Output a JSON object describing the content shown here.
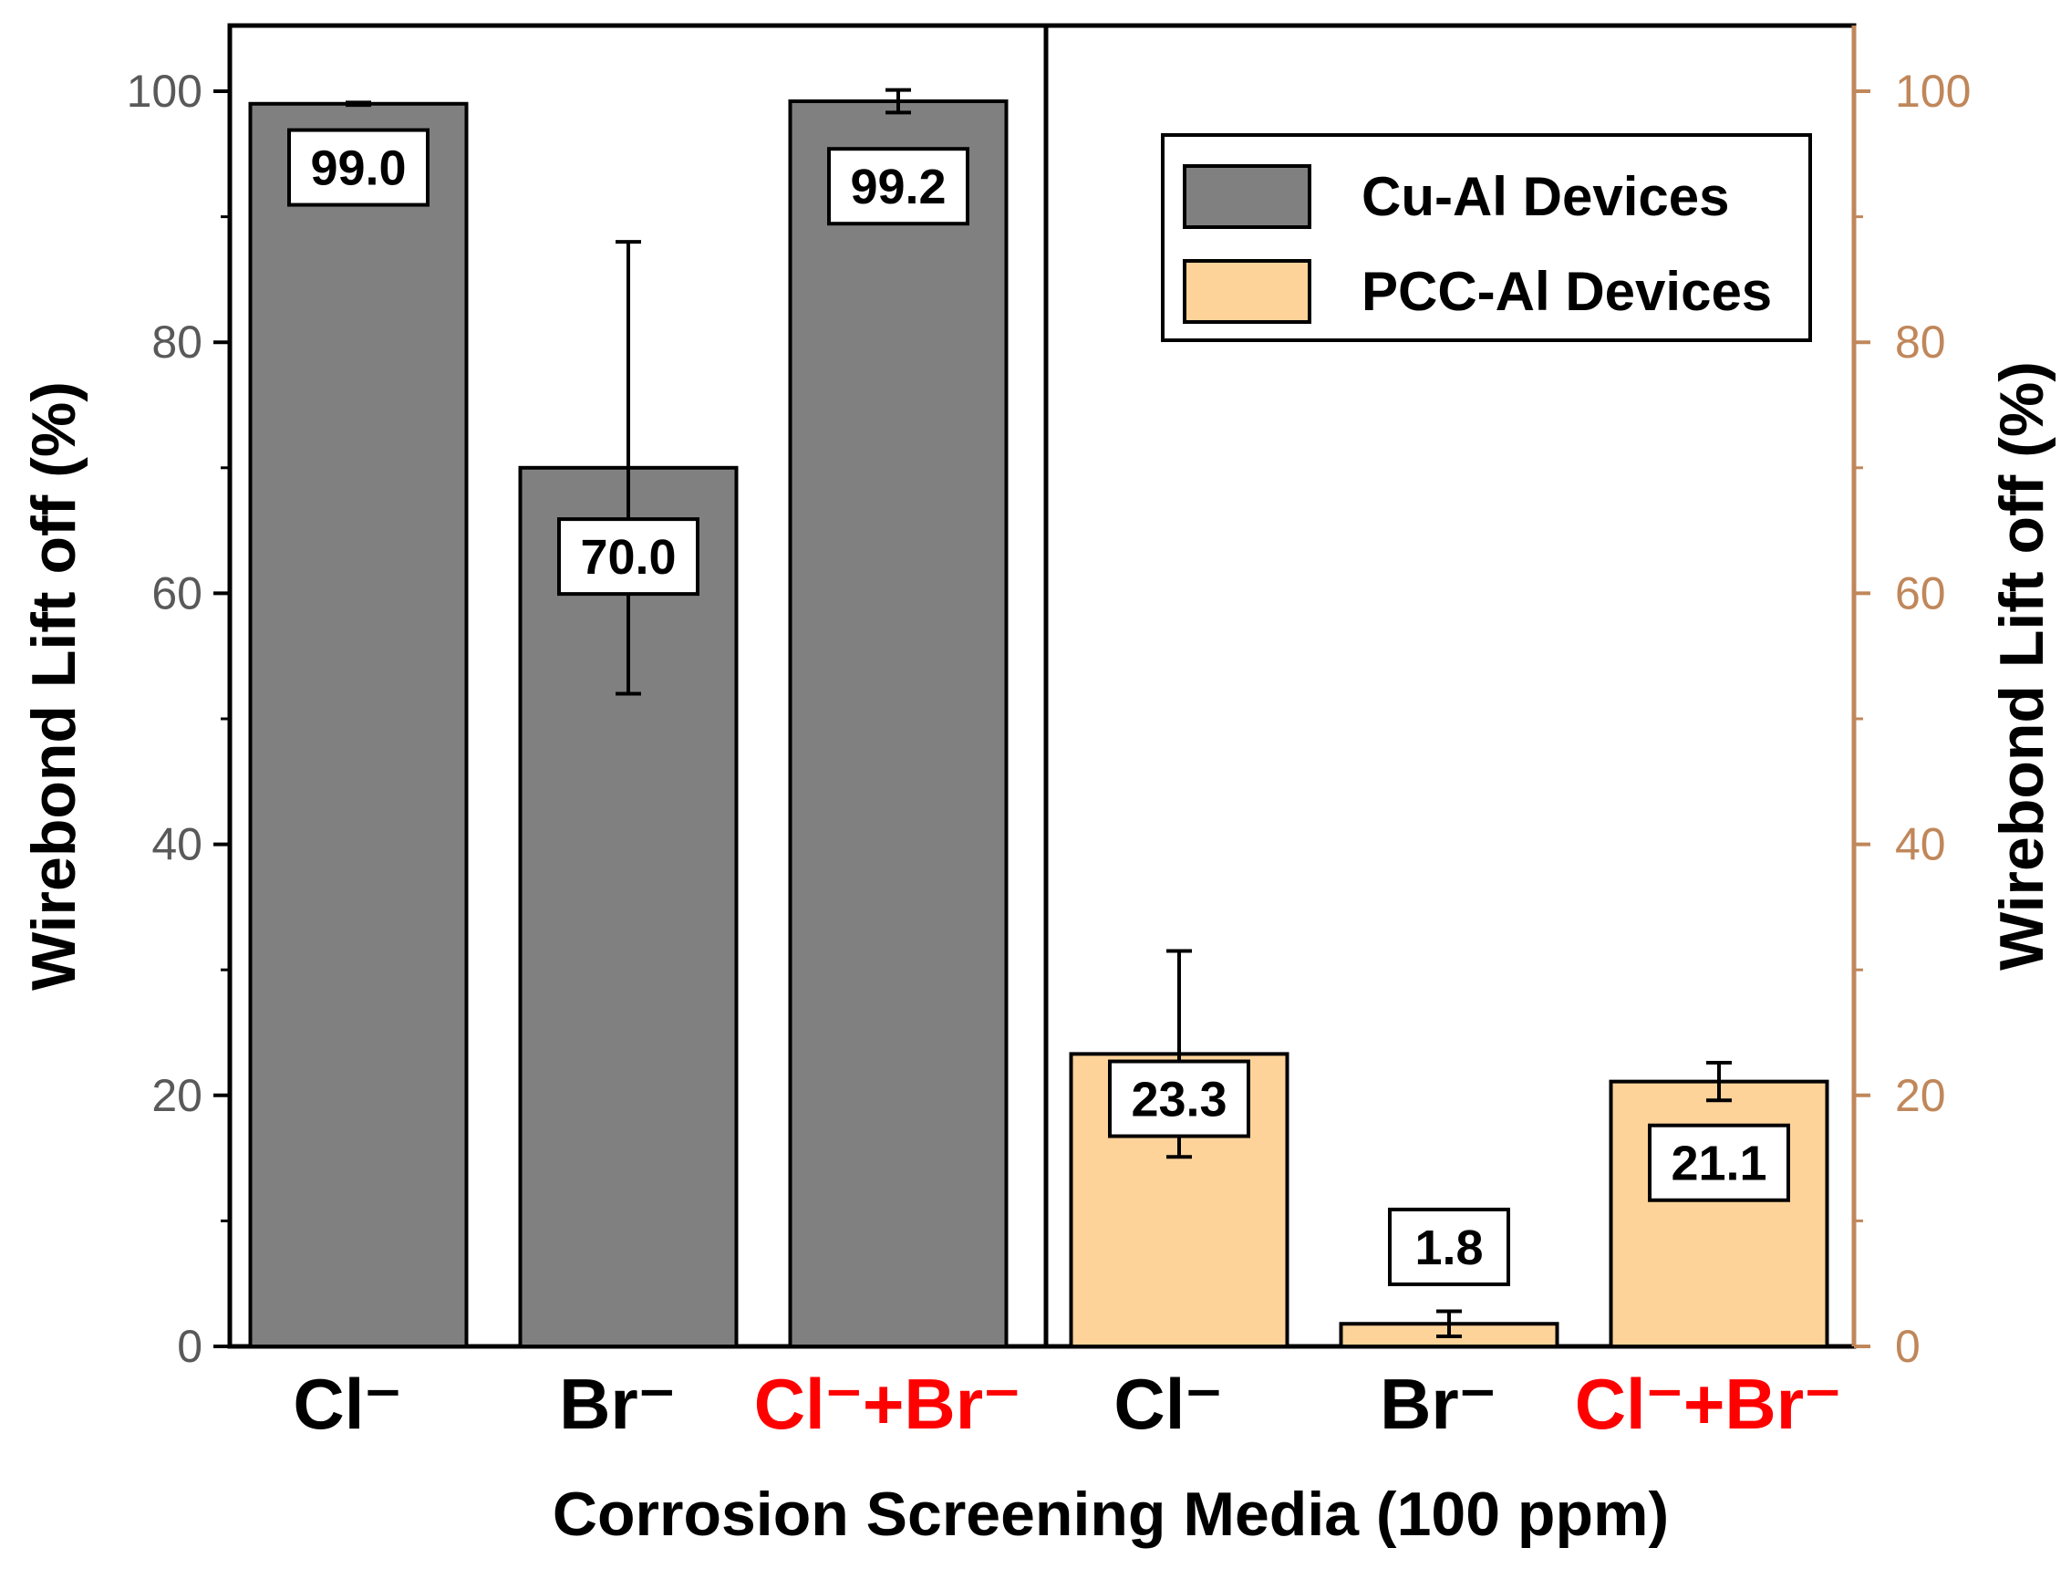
{
  "chart_data": {
    "type": "bar",
    "xlabel": "Corrosion Screening Media (100 ppm)",
    "ylabel": "Wirebond Lift off (%)",
    "ylabel_right": "Wirebond Lift off (%)",
    "ylim": [
      0,
      100
    ],
    "yticks": [
      "0",
      "20",
      "40",
      "60",
      "80",
      "100"
    ],
    "yticks_right": [
      "0",
      "20",
      "40",
      "60",
      "80",
      "100"
    ],
    "colors": {
      "cu_al": "#808080",
      "pcc_al": "#fdd39a",
      "right_axis": "#c0875a",
      "highlight_label": "#ff0000",
      "normal_label": "#000000"
    },
    "legend": [
      {
        "name": "Cu-Al Devices",
        "color": "#808080"
      },
      {
        "name": "PCC-Al Devices",
        "color": "#fdd39a"
      }
    ],
    "groups": [
      {
        "series": "Cu-Al Devices",
        "bars": [
          {
            "category": "Cl⁻",
            "value": 99.0,
            "label": "99.0",
            "err_low": 98.9,
            "err_high": 99.1,
            "label_y": 94,
            "highlight": false
          },
          {
            "category": "Br⁻",
            "value": 70.0,
            "label": "70.0",
            "err_low": 52,
            "err_high": 88,
            "label_y": 63,
            "highlight": false
          },
          {
            "category": "Cl⁻+Br⁻",
            "value": 99.2,
            "label": "99.2",
            "err_low": 98.3,
            "err_high": 100.1,
            "label_y": 92.5,
            "highlight": true
          }
        ]
      },
      {
        "series": "PCC-Al Devices",
        "bars": [
          {
            "category": "Cl⁻",
            "value": 23.3,
            "label": "23.3",
            "err_low": 15.1,
            "err_high": 31.5,
            "label_y": 19.8,
            "highlight": false
          },
          {
            "category": "Br⁻",
            "value": 1.8,
            "label": "1.8",
            "err_low": 0.8,
            "err_high": 2.8,
            "label_y": 8,
            "highlight": false
          },
          {
            "category": "Cl⁻+Br⁻",
            "value": 21.1,
            "label": "21.1",
            "err_low": 19.6,
            "err_high": 22.6,
            "label_y": 14.7,
            "highlight": true
          }
        ]
      }
    ]
  }
}
